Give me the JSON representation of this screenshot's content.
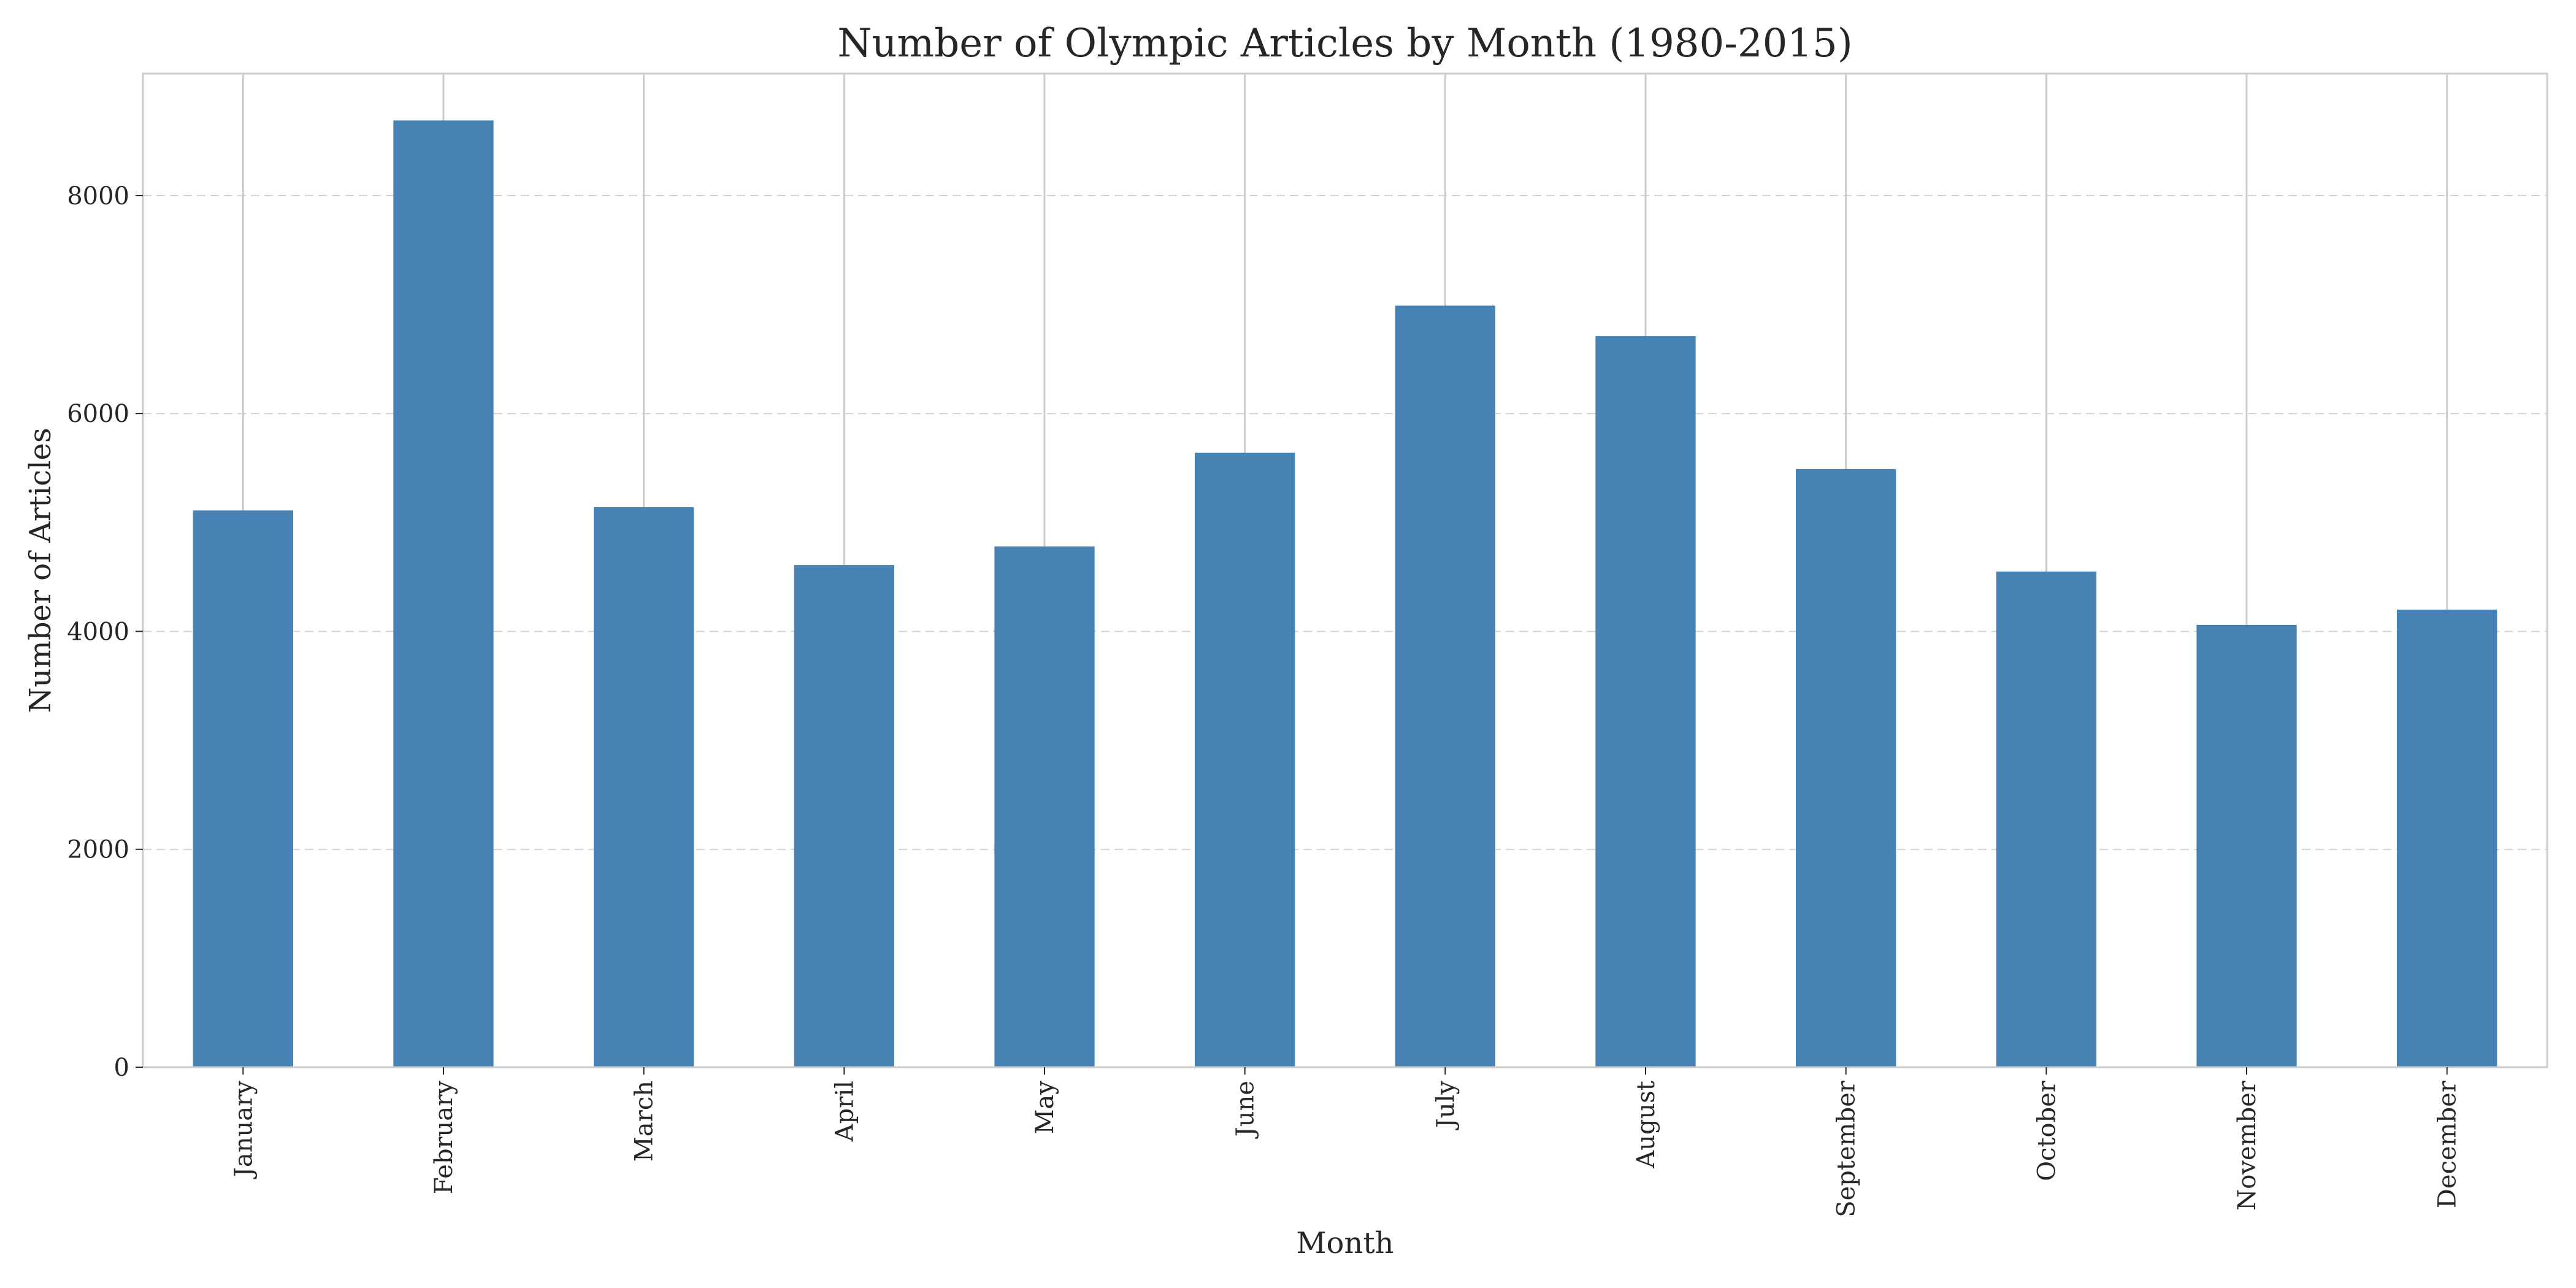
{
  "chart_data": {
    "type": "bar",
    "title": "Number of Olympic Articles by Month (1980-2015)",
    "xlabel": "Month",
    "ylabel": "Number of Articles",
    "categories": [
      "January",
      "February",
      "March",
      "April",
      "May",
      "June",
      "July",
      "August",
      "September",
      "October",
      "November",
      "December"
    ],
    "values": [
      5110,
      8690,
      5140,
      4610,
      4780,
      5640,
      6990,
      6710,
      5490,
      4550,
      4060,
      4200
    ],
    "ylim": [
      0,
      9120
    ],
    "yticks": [
      0,
      2000,
      4000,
      6000,
      8000
    ],
    "ytick_labels": [
      "0",
      "2000",
      "4000",
      "6000",
      "8000"
    ],
    "bar_color": "#4682b4",
    "grid": true,
    "legend": "none"
  }
}
